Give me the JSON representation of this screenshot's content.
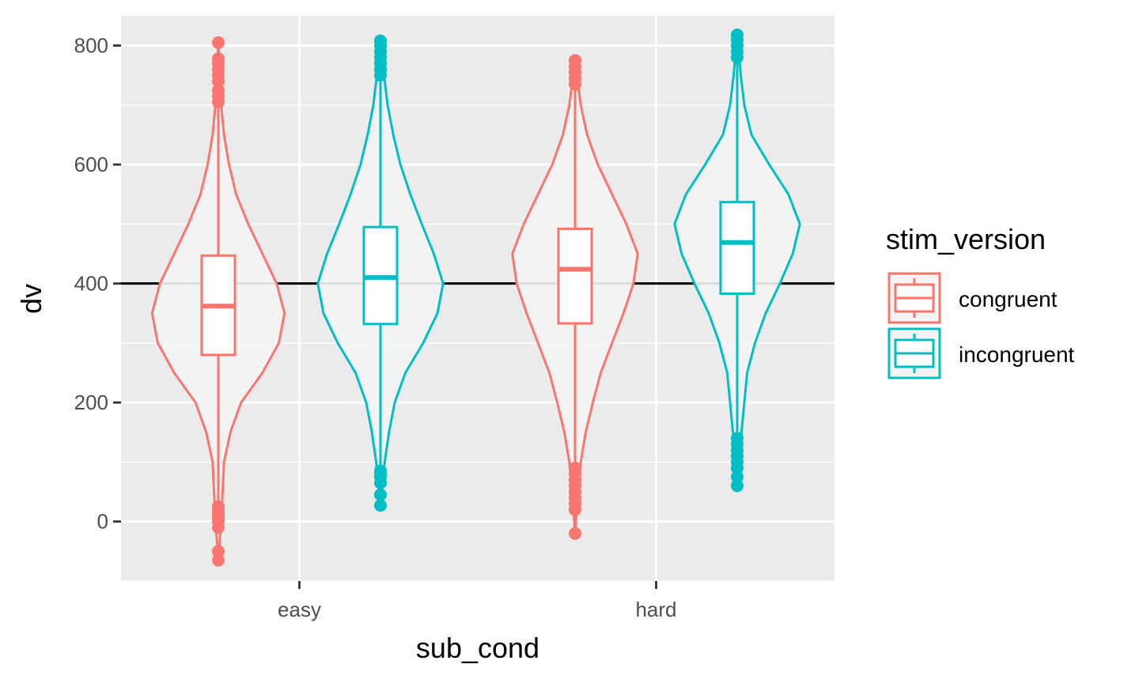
{
  "chart_data": {
    "type": "violin",
    "xlabel": "sub_cond",
    "ylabel": "dv",
    "categories": [
      "easy",
      "hard"
    ],
    "ylim": [
      -100,
      850
    ],
    "y_ticks": [
      0,
      200,
      400,
      600,
      800
    ],
    "reference_line": 400,
    "grid": true,
    "legend": {
      "title": "stim_version",
      "placement": "right",
      "items": [
        {
          "label": "congruent",
          "color": "#F8766D"
        },
        {
          "label": "incongruent",
          "color": "#00BFC4"
        }
      ]
    },
    "series": [
      {
        "name": "congruent",
        "color": "#F8766D",
        "groups": [
          {
            "category": "easy",
            "box": {
              "whisker_low": 25,
              "q1": 280,
              "median": 362,
              "q3": 447,
              "whisker_high": 700
            },
            "outliers": [
              -65,
              -50,
              -10,
              0,
              5,
              10,
              15,
              20,
              25,
              705,
              715,
              725,
              740,
              750,
              760,
              770,
              778,
              805
            ],
            "violin": [
              [
                -65,
                0.0
              ],
              [
                0,
                0.04
              ],
              [
                100,
                0.08
              ],
              [
                150,
                0.17
              ],
              [
                200,
                0.32
              ],
              [
                250,
                0.62
              ],
              [
                300,
                0.85
              ],
              [
                350,
                0.93
              ],
              [
                400,
                0.82
              ],
              [
                450,
                0.62
              ],
              [
                500,
                0.42
              ],
              [
                550,
                0.25
              ],
              [
                600,
                0.15
              ],
              [
                650,
                0.08
              ],
              [
                700,
                0.04
              ],
              [
                750,
                0.02
              ],
              [
                805,
                0.0
              ]
            ]
          },
          {
            "category": "hard",
            "box": {
              "whisker_low": 95,
              "q1": 333,
              "median": 424,
              "q3": 492,
              "whisker_high": 725
            },
            "outliers": [
              -20,
              20,
              30,
              40,
              50,
              60,
              70,
              80,
              90,
              735,
              745,
              755,
              765,
              775
            ],
            "violin": [
              [
                -20,
                0.0
              ],
              [
                50,
                0.04
              ],
              [
                100,
                0.08
              ],
              [
                150,
                0.15
              ],
              [
                200,
                0.25
              ],
              [
                250,
                0.36
              ],
              [
                300,
                0.52
              ],
              [
                350,
                0.68
              ],
              [
                400,
                0.82
              ],
              [
                450,
                0.88
              ],
              [
                500,
                0.72
              ],
              [
                550,
                0.52
              ],
              [
                600,
                0.32
              ],
              [
                650,
                0.17
              ],
              [
                700,
                0.08
              ],
              [
                775,
                0.0
              ]
            ]
          }
        ]
      },
      {
        "name": "incongruent",
        "color": "#00BFC4",
        "groups": [
          {
            "category": "easy",
            "box": {
              "whisker_low": 90,
              "q1": 332,
              "median": 410,
              "q3": 495,
              "whisker_high": 745
            },
            "outliers": [
              27,
              45,
              65,
              75,
              80,
              85,
              750,
              760,
              770,
              780,
              790,
              800,
              808
            ],
            "violin": [
              [
                27,
                0.0
              ],
              [
                100,
                0.06
              ],
              [
                150,
                0.12
              ],
              [
                200,
                0.2
              ],
              [
                250,
                0.35
              ],
              [
                300,
                0.6
              ],
              [
                350,
                0.8
              ],
              [
                400,
                0.88
              ],
              [
                450,
                0.75
              ],
              [
                500,
                0.58
              ],
              [
                550,
                0.42
              ],
              [
                600,
                0.28
              ],
              [
                650,
                0.18
              ],
              [
                700,
                0.1
              ],
              [
                750,
                0.05
              ],
              [
                808,
                0.0
              ]
            ]
          },
          {
            "category": "hard",
            "box": {
              "whisker_low": 148,
              "q1": 383,
              "median": 469,
              "q3": 537,
              "whisker_high": 770
            },
            "outliers": [
              60,
              75,
              90,
              100,
              110,
              120,
              130,
              140,
              780,
              790,
              800,
              810,
              818
            ],
            "violin": [
              [
                60,
                0.0
              ],
              [
                150,
                0.06
              ],
              [
                200,
                0.1
              ],
              [
                250,
                0.14
              ],
              [
                300,
                0.25
              ],
              [
                350,
                0.4
              ],
              [
                400,
                0.6
              ],
              [
                450,
                0.78
              ],
              [
                500,
                0.88
              ],
              [
                550,
                0.72
              ],
              [
                600,
                0.45
              ],
              [
                650,
                0.2
              ],
              [
                700,
                0.1
              ],
              [
                750,
                0.05
              ],
              [
                818,
                0.0
              ]
            ]
          }
        ]
      }
    ]
  }
}
